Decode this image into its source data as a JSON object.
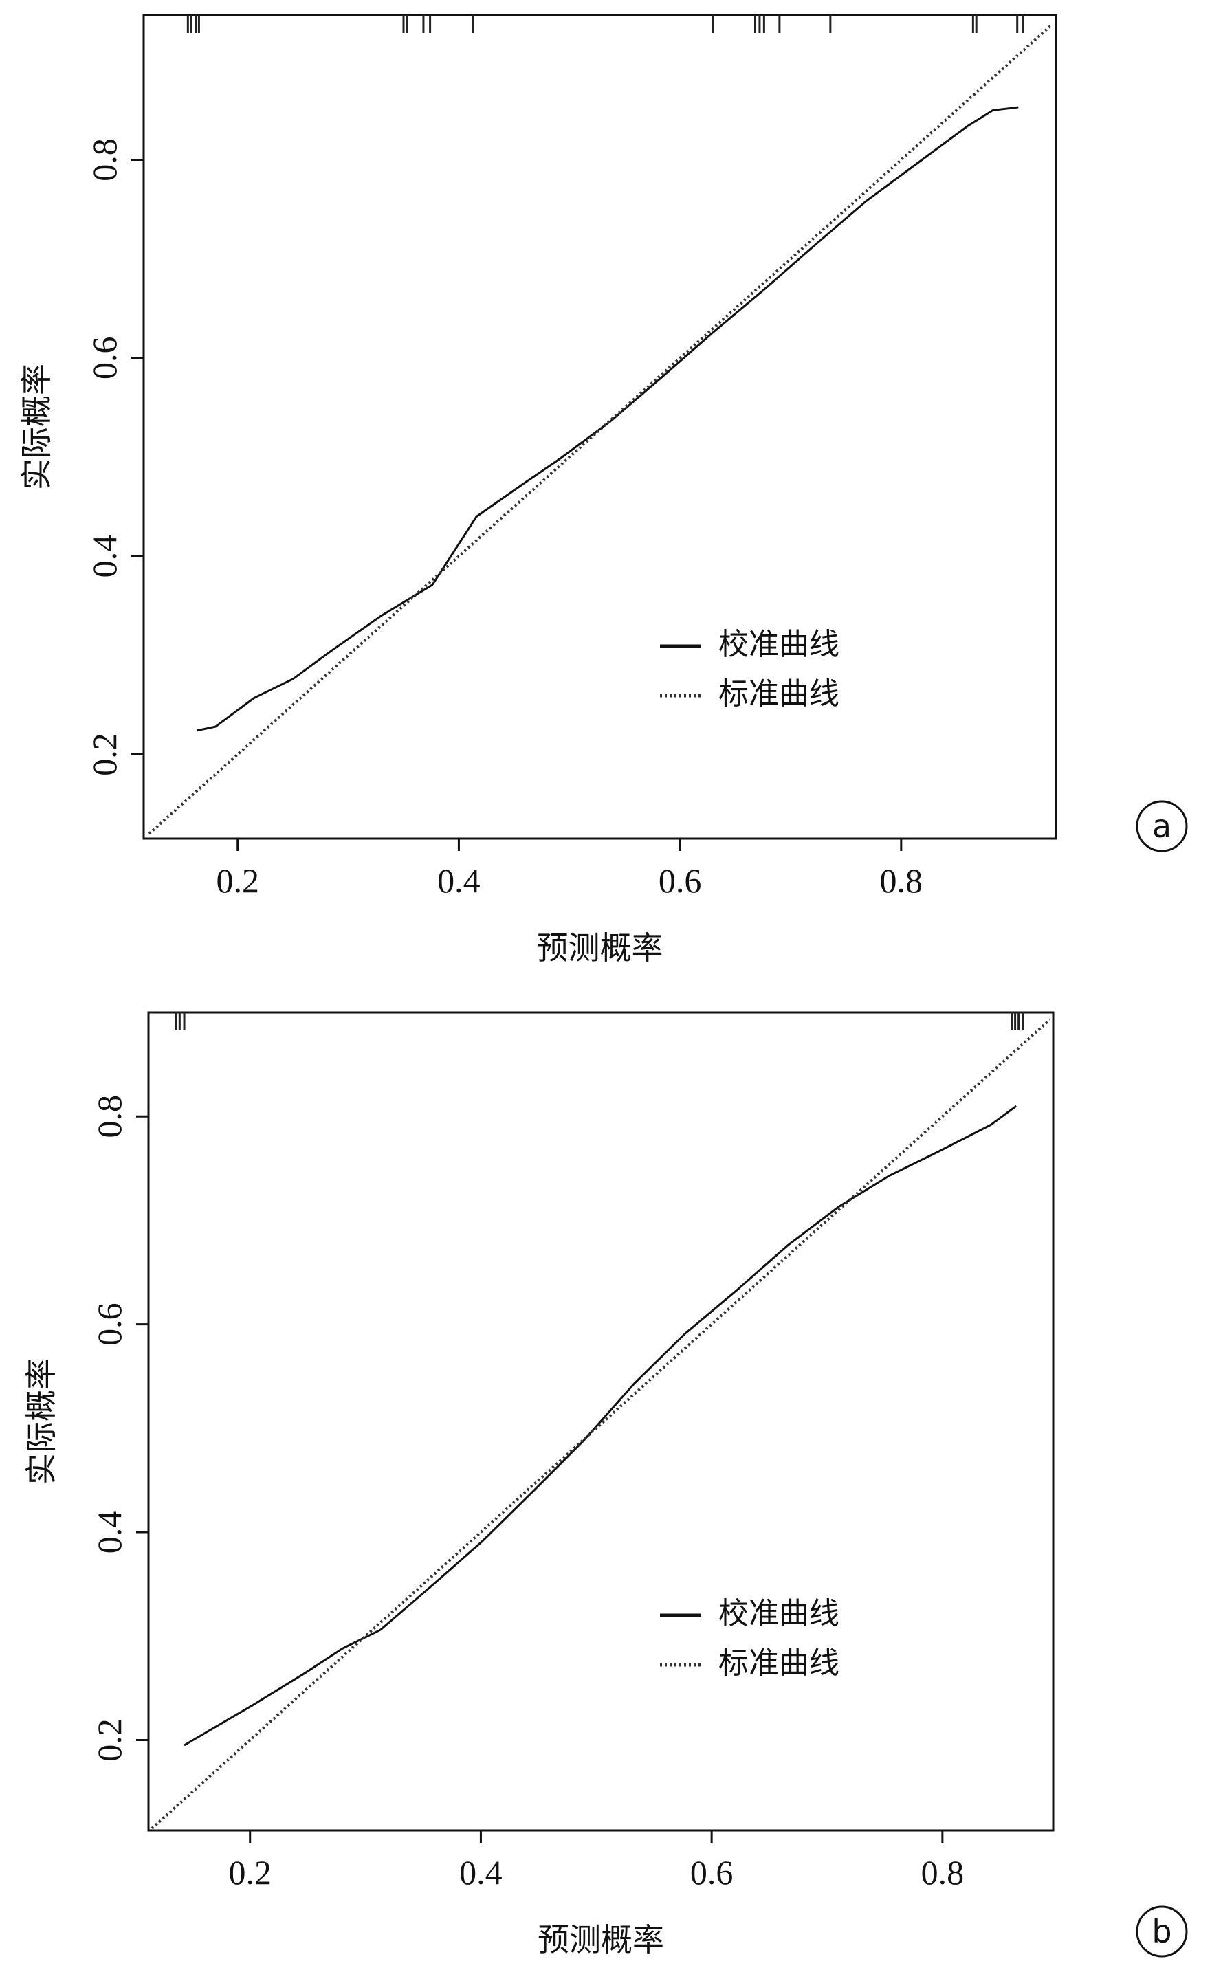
{
  "chart_data": [
    {
      "type": "line",
      "panel_label": "a",
      "x_label": "预测概率",
      "y_label": "实际概率",
      "xlim": [
        0.115,
        0.94
      ],
      "ylim": [
        0.115,
        0.946
      ],
      "xticks": [
        0.2,
        0.4,
        0.6,
        0.8
      ],
      "yticks": [
        0.2,
        0.4,
        0.6,
        0.8
      ],
      "rug": [
        0.155,
        0.158,
        0.162,
        0.165,
        0.35,
        0.353,
        0.368,
        0.374,
        0.413,
        0.63,
        0.668,
        0.672,
        0.676,
        0.69,
        0.736,
        0.865,
        0.868,
        0.905,
        0.91
      ],
      "series": [
        {
          "name": "校准曲线",
          "color": "#111111",
          "dash": "solid",
          "x": [
            0.163,
            0.18,
            0.215,
            0.25,
            0.284,
            0.33,
            0.376,
            0.416,
            0.457,
            0.491,
            0.537,
            0.583,
            0.629,
            0.676,
            0.722,
            0.768,
            0.814,
            0.86,
            0.883,
            0.906
          ],
          "values": [
            0.224,
            0.228,
            0.257,
            0.276,
            0.304,
            0.34,
            0.371,
            0.44,
            0.472,
            0.498,
            0.536,
            0.58,
            0.625,
            0.669,
            0.714,
            0.758,
            0.796,
            0.834,
            0.85,
            0.853
          ]
        },
        {
          "name": "标准曲线",
          "color": "#333333",
          "dash": "dotted",
          "x": [
            0.12,
            0.935
          ],
          "values": [
            0.12,
            0.935
          ]
        }
      ]
    },
    {
      "type": "line",
      "panel_label": "b",
      "x_label": "预测概率",
      "y_label": "实际概率",
      "xlim": [
        0.112,
        0.896
      ],
      "ylim": [
        0.113,
        0.9
      ],
      "xticks": [
        0.2,
        0.4,
        0.6,
        0.8
      ],
      "yticks": [
        0.2,
        0.4,
        0.6,
        0.8
      ],
      "rug": [
        0.136,
        0.139,
        0.143,
        0.86,
        0.863,
        0.866,
        0.87
      ],
      "series": [
        {
          "name": "校准曲线",
          "color": "#111111",
          "dash": "solid",
          "x": [
            0.143,
            0.203,
            0.247,
            0.28,
            0.313,
            0.357,
            0.401,
            0.445,
            0.489,
            0.533,
            0.577,
            0.622,
            0.666,
            0.71,
            0.754,
            0.798,
            0.842,
            0.864
          ],
          "values": [
            0.195,
            0.234,
            0.264,
            0.288,
            0.306,
            0.348,
            0.391,
            0.439,
            0.488,
            0.543,
            0.591,
            0.633,
            0.676,
            0.713,
            0.743,
            0.767,
            0.792,
            0.81
          ]
        },
        {
          "name": "标准曲线",
          "color": "#333333",
          "dash": "dotted",
          "x": [
            0.115,
            0.893
          ],
          "values": [
            0.115,
            0.893
          ]
        }
      ]
    }
  ]
}
